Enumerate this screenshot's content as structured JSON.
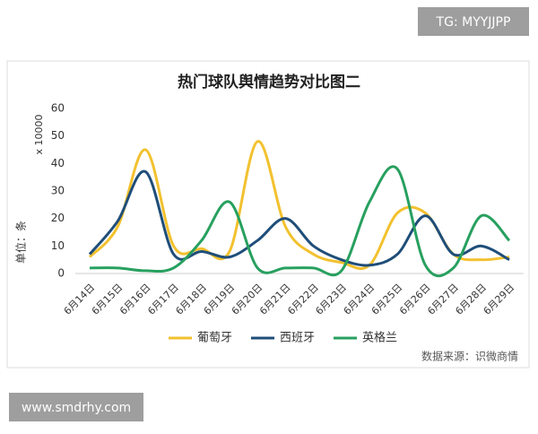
{
  "watermark_top": "TG: MYYJJPP",
  "watermark_bottom": "www.smdrhy.com",
  "chart_data": {
    "type": "line",
    "title": "热门球队舆情趋势对比图二",
    "y_label": "单位：条",
    "y_multiplier": "x 10000",
    "source": "数据来源：识微商情",
    "categories": [
      "6月14日",
      "6月15日",
      "6月16日",
      "6月17日",
      "6月18日",
      "6月19日",
      "6月20日",
      "6月21日",
      "6月22日",
      "6月23日",
      "6月24日",
      "6月25日",
      "6月26日",
      "6月27日",
      "6月28日",
      "6月29日"
    ],
    "series": [
      {
        "name": "葡萄牙",
        "color": "#f2c12e",
        "values": [
          6,
          17,
          45,
          10,
          9,
          8,
          48,
          17,
          7,
          4,
          3,
          22,
          22,
          7,
          5,
          6
        ]
      },
      {
        "name": "西班牙",
        "color": "#1f4e79",
        "values": [
          7,
          19,
          37,
          7,
          8,
          6,
          12,
          20,
          10,
          5,
          3,
          7,
          21,
          7,
          10,
          5
        ]
      },
      {
        "name": "英格兰",
        "color": "#27a05f",
        "values": [
          2,
          2,
          1,
          2,
          12,
          26,
          2,
          2,
          2,
          1,
          26,
          38,
          3,
          2,
          21,
          12
        ]
      }
    ],
    "ylim": [
      0,
      60
    ],
    "yticks": [
      0,
      10,
      20,
      30,
      40,
      50,
      60
    ],
    "smooth": true
  }
}
